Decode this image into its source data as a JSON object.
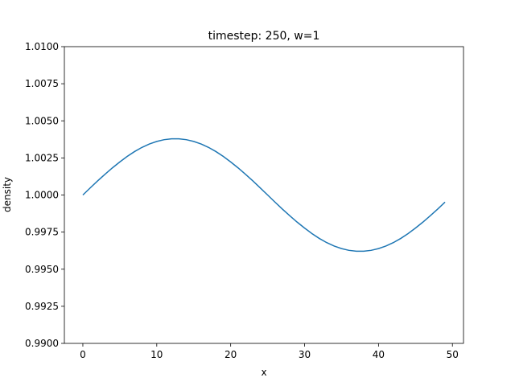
{
  "chart_data": {
    "type": "line",
    "title": "timestep: 250, w=1",
    "xlabel": "x",
    "ylabel": "density",
    "x": [
      0,
      1,
      2,
      3,
      4,
      5,
      6,
      7,
      8,
      9,
      10,
      11,
      12,
      13,
      14,
      15,
      16,
      17,
      18,
      19,
      20,
      21,
      22,
      23,
      24,
      25,
      26,
      27,
      28,
      29,
      30,
      31,
      32,
      33,
      34,
      35,
      36,
      37,
      38,
      39,
      40,
      41,
      42,
      43,
      44,
      45,
      46,
      47,
      48,
      49
    ],
    "series": [
      {
        "name": "density",
        "color": "#1f77b4",
        "values": [
          1.0,
          1.00048,
          1.00095,
          1.0014,
          1.00183,
          1.00223,
          1.0026,
          1.00293,
          1.00321,
          1.00344,
          1.00361,
          1.00373,
          1.00379,
          1.00379,
          1.00373,
          1.00361,
          1.00344,
          1.00321,
          1.00293,
          1.0026,
          1.00223,
          1.00183,
          1.0014,
          1.00095,
          1.00048,
          1.0,
          0.99952,
          0.99905,
          0.9986,
          0.99817,
          0.99777,
          0.9974,
          0.99707,
          0.99679,
          0.99656,
          0.99639,
          0.99627,
          0.99621,
          0.99621,
          0.99627,
          0.99639,
          0.99656,
          0.99679,
          0.99707,
          0.9974,
          0.99777,
          0.99817,
          0.9986,
          0.99905,
          0.99952
        ]
      }
    ],
    "xlim": [
      -2.5,
      51.5
    ],
    "xticks": [
      0,
      10,
      20,
      30,
      40,
      50
    ],
    "ylim": [
      0.99,
      1.01
    ],
    "yticks": [
      {
        "value": 0.99,
        "label": "0.9900"
      },
      {
        "value": 0.9925,
        "label": "0.9925"
      },
      {
        "value": 0.995,
        "label": "0.9950"
      },
      {
        "value": 0.9975,
        "label": "0.9975"
      },
      {
        "value": 1.0,
        "label": "1.0000"
      },
      {
        "value": 1.0025,
        "label": "1.0025"
      },
      {
        "value": 1.005,
        "label": "1.0050"
      },
      {
        "value": 1.0075,
        "label": "1.0075"
      },
      {
        "value": 1.01,
        "label": "1.0100"
      }
    ],
    "grid": false
  }
}
